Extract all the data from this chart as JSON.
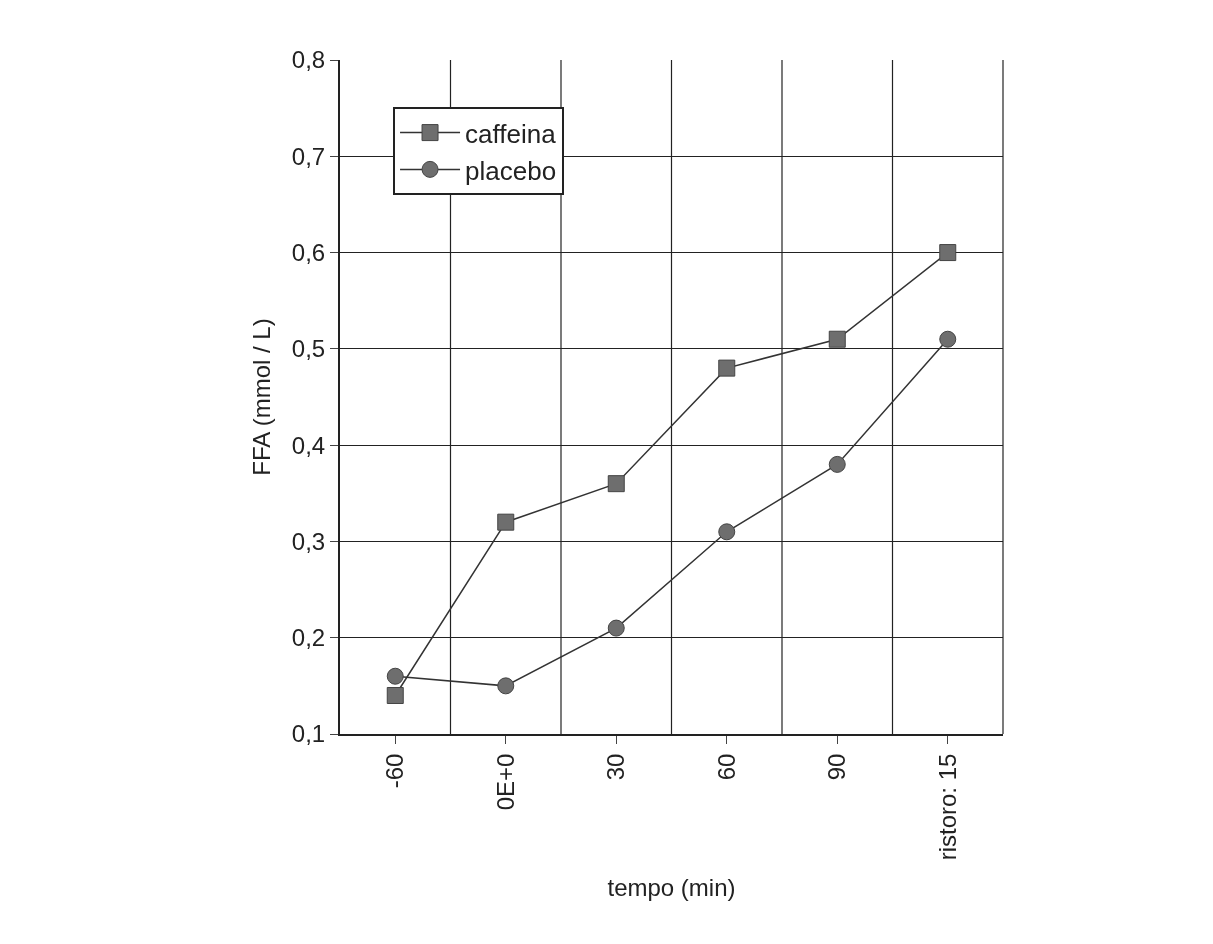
{
  "chart_data": {
    "type": "line",
    "xlabel": "tempo (min)",
    "ylabel": "FFA (mmol / L)",
    "categories": [
      "-60",
      "0E+0",
      "30",
      "60",
      "90",
      "ristoro: 15"
    ],
    "series": [
      {
        "name": "caffeina",
        "color": "#6e6e6e",
        "marker": "square",
        "values": [
          0.14,
          0.32,
          0.36,
          0.48,
          0.51,
          0.6
        ]
      },
      {
        "name": "placebo",
        "color": "#6e6e6e",
        "marker": "circle",
        "values": [
          0.16,
          0.15,
          0.21,
          0.31,
          0.38,
          0.51
        ]
      }
    ],
    "ylim": [
      0.1,
      0.8
    ],
    "yticks": [
      {
        "value": 0.1,
        "label": "0,1"
      },
      {
        "value": 0.2,
        "label": "0,2"
      },
      {
        "value": 0.3,
        "label": "0,3"
      },
      {
        "value": 0.4,
        "label": "0,4"
      },
      {
        "value": 0.5,
        "label": "0,5"
      },
      {
        "value": 0.6,
        "label": "0,6"
      },
      {
        "value": 0.7,
        "label": "0,7"
      },
      {
        "value": 0.8,
        "label": "0,8"
      }
    ],
    "grid": true,
    "legend": "top left",
    "line_style": "solid"
  }
}
